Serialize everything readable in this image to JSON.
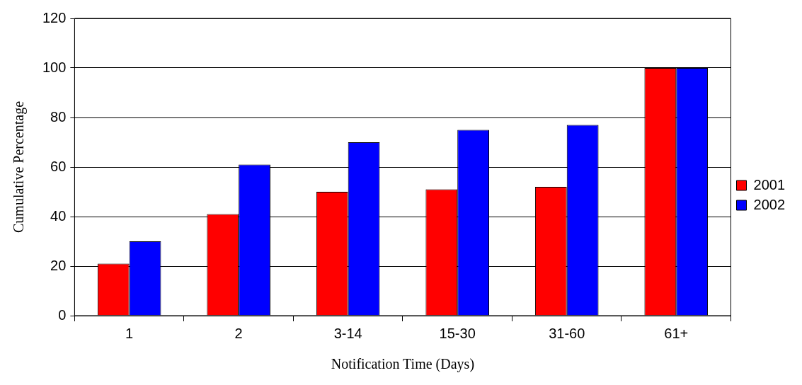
{
  "chart_data": {
    "type": "bar",
    "xlabel": "Notification Time (Days)",
    "ylabel": "Cumulative Percentage",
    "categories": [
      "1",
      "2",
      "3-14",
      "15-30",
      "31-60",
      "61+"
    ],
    "series": [
      {
        "name": "2001",
        "color": "#ff0000",
        "values": [
          21,
          41,
          50,
          51,
          52,
          100
        ]
      },
      {
        "name": "2002",
        "color": "#0000ff",
        "values": [
          30,
          61,
          70,
          75,
          77,
          100
        ]
      }
    ],
    "ylim": [
      0,
      120
    ],
    "yticks": [
      0,
      20,
      40,
      60,
      80,
      100,
      120
    ],
    "grid": "y",
    "legend": "right"
  }
}
